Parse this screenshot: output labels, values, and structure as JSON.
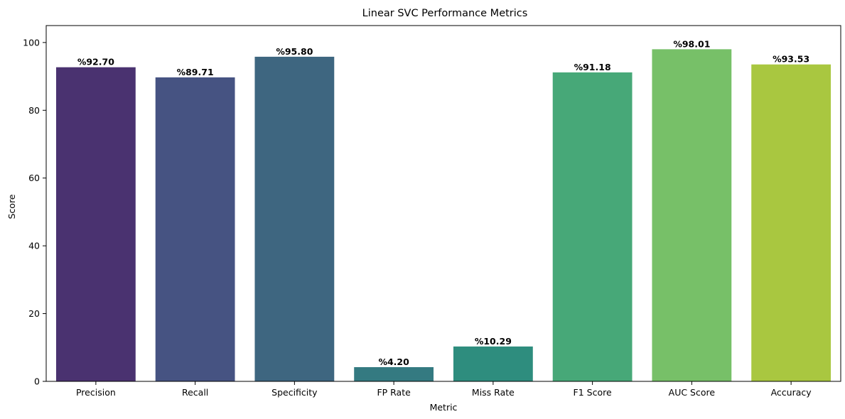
{
  "chart_data": {
    "type": "bar",
    "title": "Linear SVC Performance Metrics",
    "xlabel": "Metric",
    "ylabel": "Score",
    "categories": [
      "Precision",
      "Recall",
      "Specificity",
      "FP Rate",
      "Miss Rate",
      "F1 Score",
      "AUC Score",
      "Accuracy"
    ],
    "values": [
      92.7,
      89.71,
      95.8,
      4.2,
      10.29,
      91.18,
      98.01,
      93.53
    ],
    "data_labels": [
      "%92.70",
      "%89.71",
      "%95.80",
      "%4.20",
      "%10.29",
      "%91.18",
      "%98.01",
      "%93.53"
    ],
    "colors": [
      "#4a3270",
      "#465382",
      "#3e6680",
      "#347a81",
      "#2e8d7e",
      "#47a878",
      "#77c068",
      "#a9c740"
    ],
    "ylim": [
      0,
      105
    ],
    "yticks": [
      0,
      20,
      40,
      60,
      80,
      100
    ],
    "grid": false,
    "legend": "none"
  }
}
